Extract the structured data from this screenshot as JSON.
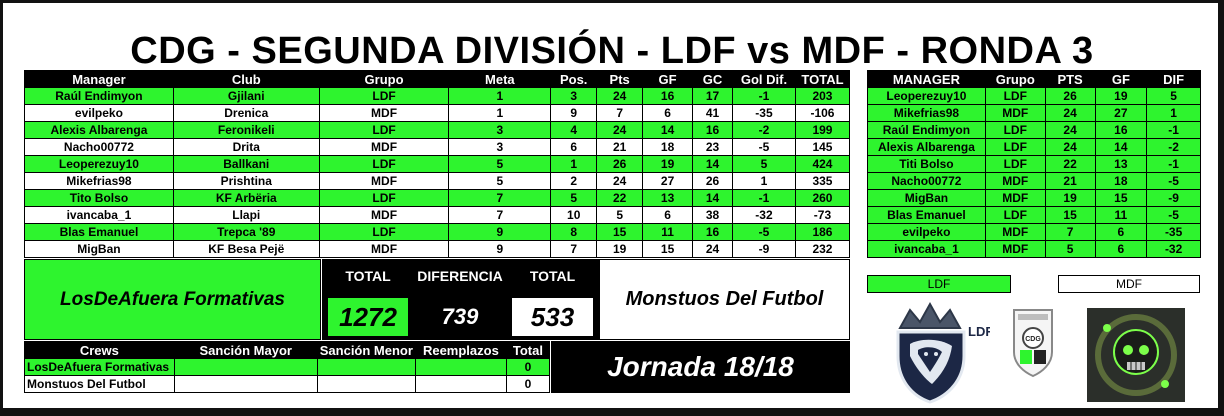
{
  "title": "CDG - SEGUNDA DIVISIÓN - LDF vs MDF - RONDA 3",
  "main_table": {
    "headers": [
      "Manager",
      "Club",
      "Grupo",
      "Meta",
      "Pos.",
      "Pts",
      "GF",
      "GC",
      "Gol Dif.",
      "TOTAL"
    ],
    "rows": [
      [
        "Raúl Endimyon",
        "Gjilani",
        "LDF",
        "1",
        "3",
        "24",
        "16",
        "17",
        "-1",
        "203"
      ],
      [
        "evilpeko",
        "Drenica",
        "MDF",
        "1",
        "9",
        "7",
        "6",
        "41",
        "-35",
        "-106"
      ],
      [
        "Alexis Albarenga",
        "Feronikeli",
        "LDF",
        "3",
        "4",
        "24",
        "14",
        "16",
        "-2",
        "199"
      ],
      [
        "Nacho00772",
        "Drita",
        "MDF",
        "3",
        "6",
        "21",
        "18",
        "23",
        "-5",
        "145"
      ],
      [
        "Leoperezuy10",
        "Ballkani",
        "LDF",
        "5",
        "1",
        "26",
        "19",
        "14",
        "5",
        "424"
      ],
      [
        "Mikefrias98",
        "Prishtina",
        "MDF",
        "5",
        "2",
        "24",
        "27",
        "26",
        "1",
        "335"
      ],
      [
        "Tito Bolso",
        "KF Arbëria",
        "LDF",
        "7",
        "5",
        "22",
        "13",
        "14",
        "-1",
        "260"
      ],
      [
        "ivancaba_1",
        "Llapi",
        "MDF",
        "7",
        "10",
        "5",
        "6",
        "38",
        "-32",
        "-73"
      ],
      [
        "Blas Emanuel",
        "Trepca '89",
        "LDF",
        "9",
        "8",
        "15",
        "11",
        "16",
        "-5",
        "186"
      ],
      [
        "MigBan",
        "KF Besa Pejë",
        "MDF",
        "9",
        "7",
        "19",
        "15",
        "24",
        "-9",
        "232"
      ]
    ]
  },
  "standings": {
    "headers": [
      "MANAGER",
      "Grupo",
      "PTS",
      "GF",
      "DIF"
    ],
    "rows": [
      [
        "Leoperezuy10",
        "LDF",
        "26",
        "19",
        "5"
      ],
      [
        "Mikefrias98",
        "MDF",
        "24",
        "27",
        "1"
      ],
      [
        "Raúl Endimyon",
        "LDF",
        "24",
        "16",
        "-1"
      ],
      [
        "Alexis Albarenga",
        "LDF",
        "24",
        "14",
        "-2"
      ],
      [
        "Titi Bolso",
        "LDF",
        "22",
        "13",
        "-1"
      ],
      [
        "Nacho00772",
        "MDF",
        "21",
        "18",
        "-5"
      ],
      [
        "MigBan",
        "MDF",
        "19",
        "15",
        "-9"
      ],
      [
        "Blas Emanuel",
        "LDF",
        "15",
        "11",
        "-5"
      ],
      [
        "evilpeko",
        "MDF",
        "7",
        "6",
        "-35"
      ],
      [
        "ivancaba_1",
        "MDF",
        "5",
        "6",
        "-32"
      ]
    ]
  },
  "summary": {
    "team_ldf": "LosDeAfuera Formativas",
    "team_mdf": "Monstuos Del Futbol",
    "total_label_ldf": "TOTAL",
    "total_ldf": "1272",
    "diff_label": "DIFERENCIA",
    "diff": "739",
    "total_label_mdf": "TOTAL",
    "total_mdf": "533"
  },
  "crews": {
    "headers": [
      "Crews",
      "Sanción Mayor",
      "Sanción Menor",
      "Reemplazos",
      "Total"
    ],
    "rows": [
      [
        "LosDeAfuera Formativas",
        "",
        "",
        "",
        "0"
      ],
      [
        "Monstuos Del Futbol",
        "",
        "",
        "",
        "0"
      ]
    ]
  },
  "jornada": "Jornada 18/18",
  "legend": {
    "ldf": "LDF",
    "mdf": "MDF"
  },
  "logos": {
    "ldf_logo": "LDF",
    "cdg_badge": "CDG",
    "mdf_logo": "skull-logo"
  },
  "colors": {
    "ldf_green": "#2ef42e",
    "black": "#000000",
    "white": "#ffffff"
  }
}
